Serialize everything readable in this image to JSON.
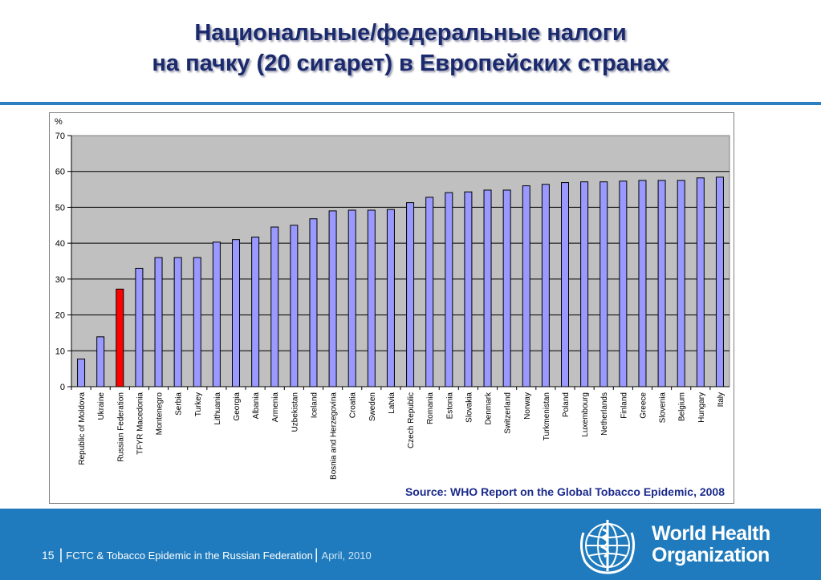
{
  "header": {
    "title_line1": "Национальные/федеральные налоги",
    "title_line2": "на пачку (20 сигарет) в Европейских странах"
  },
  "chart_data": {
    "type": "bar",
    "y_unit_label": "%",
    "ylim": [
      0,
      70
    ],
    "yticks": [
      0,
      10,
      20,
      30,
      40,
      50,
      60,
      70
    ],
    "grid": true,
    "plot_background": "#c0c0c0",
    "bar_color": "#9999ff",
    "highlight_color": "#ff0000",
    "highlight_category": "Russian Federation",
    "categories": [
      "Republic of Moldova",
      "Ukraine",
      "Russian Federation",
      "TFYR Macedonia",
      "Montenegro",
      "Serbia",
      "Turkey",
      "Lithuania",
      "Georgia",
      "Albania",
      "Armenia",
      "Uzbekistan",
      "Iceland",
      "Bosnia and Herzegovina",
      "Croatia",
      "Sweden",
      "Latvia",
      "Czech Republic",
      "Romania",
      "Estonia",
      "Slovakia",
      "Denmark",
      "Switzerland",
      "Norway",
      "Turkmenistan",
      "Poland",
      "Luxembourg",
      "Netherlands",
      "Finland",
      "Greece",
      "Slovenia",
      "Belgium",
      "Hungary",
      "Italy"
    ],
    "values": [
      7.7,
      13.9,
      27.2,
      33.0,
      36.0,
      36.0,
      36.0,
      40.3,
      41.0,
      41.7,
      44.5,
      45.0,
      46.8,
      49.0,
      49.2,
      49.2,
      49.4,
      51.3,
      52.8,
      54.1,
      54.3,
      54.8,
      54.8,
      56.0,
      56.4,
      56.9,
      57.1,
      57.1,
      57.3,
      57.5,
      57.5,
      57.5,
      58.2,
      58.4
    ]
  },
  "source": "Source: WHO Report on the Global Tobacco Epidemic, 2008",
  "footer": {
    "page_number": "15",
    "separator": "|",
    "presentation_title": "FCTC &  Tobacco Epidemic in the Russian Federation",
    "date": "April, 2010"
  },
  "logo": {
    "line1": "World Health",
    "line2": "Organization",
    "emblem_icon": "who-emblem-icon"
  }
}
